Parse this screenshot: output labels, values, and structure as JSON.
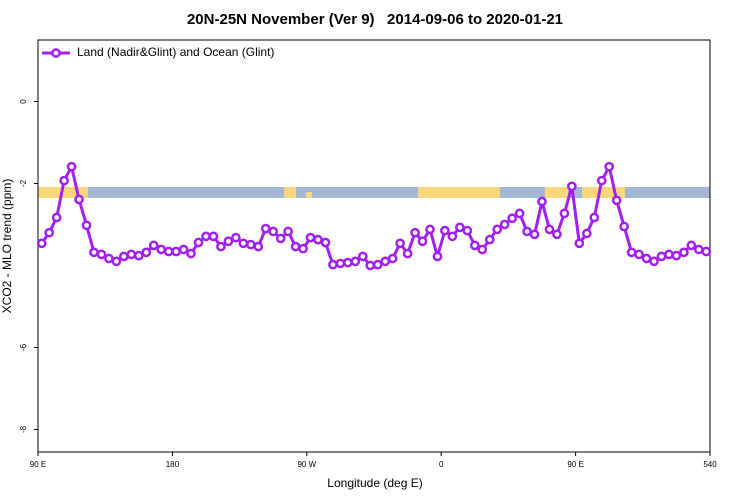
{
  "chart_data": {
    "type": "line",
    "title": "20N-25N November (Ver 9)   2014-09-06 to 2020-01-21",
    "x_label": "Longitude (deg E)",
    "y_label": "XCO2 - MLO trend (ppm)",
    "legend": "top-left",
    "x": [
      92.5,
      97.5,
      102.5,
      107.5,
      112.5,
      117.5,
      122.5,
      127.5,
      132.5,
      137.5,
      142.5,
      147.5,
      152.5,
      157.5,
      162.5,
      167.5,
      172.5,
      177.5,
      182.5,
      187.5,
      192.5,
      197.5,
      202.5,
      207.5,
      212.5,
      217.5,
      222.5,
      227.5,
      232.5,
      237.5,
      242.5,
      247.5,
      252.5,
      257.5,
      262.5,
      267.5,
      272.5,
      277.5,
      282.5,
      287.5,
      292.5,
      297.5,
      302.5,
      307.5,
      312.5,
      317.5,
      322.5,
      327.5,
      332.5,
      337.5,
      342.5,
      347.5,
      352.5,
      357.5,
      362.5,
      367.5,
      372.5,
      377.5,
      382.5,
      387.5,
      392.5,
      397.5,
      402.5,
      407.5,
      412.5,
      417.5,
      422.5,
      427.5,
      432.5,
      437.5,
      442.5,
      447.5,
      452.5,
      457.5,
      462.5,
      467.5,
      472.5,
      477.5,
      482.5,
      487.5,
      492.5,
      497.5,
      502.5,
      507.5,
      512.5,
      517.5,
      522.5,
      527.5,
      532.5,
      537.5
    ],
    "series": [
      {
        "name": "Land (Nadir&Glint) and Ocean (Glint)",
        "color": "#a020f0",
        "values": [
          -3.46,
          -3.2,
          -2.83,
          -1.93,
          -1.59,
          -2.39,
          -3.02,
          -3.68,
          -3.73,
          -3.83,
          -3.9,
          -3.78,
          -3.73,
          -3.76,
          -3.68,
          -3.51,
          -3.61,
          -3.66,
          -3.66,
          -3.61,
          -3.71,
          -3.44,
          -3.29,
          -3.29,
          -3.54,
          -3.41,
          -3.32,
          -3.46,
          -3.49,
          -3.54,
          -3.1,
          -3.17,
          -3.34,
          -3.17,
          -3.54,
          -3.59,
          -3.32,
          -3.37,
          -3.44,
          -3.98,
          -3.95,
          -3.93,
          -3.9,
          -3.78,
          -4.0,
          -3.98,
          -3.9,
          -3.83,
          -3.46,
          -3.71,
          -3.2,
          -3.41,
          -3.12,
          -3.78,
          -3.15,
          -3.29,
          -3.07,
          -3.15,
          -3.51,
          -3.61,
          -3.37,
          -3.12,
          -3.0,
          -2.85,
          -2.73,
          -3.17,
          -3.24,
          -2.44,
          -3.12,
          -3.24,
          -2.73,
          -2.07,
          -3.46,
          -3.22,
          -2.83,
          -1.93,
          -1.59,
          -2.41,
          -3.05,
          -3.68,
          -3.73,
          -3.83,
          -3.9,
          -3.78,
          -3.73,
          -3.76,
          -3.68,
          -3.51,
          -3.61,
          -3.66
        ]
      }
    ],
    "xlim": [
      90,
      540
    ],
    "xticks": [
      {
        "value": 90,
        "label": "90 E"
      },
      180,
      {
        "value": 270,
        "label": "90 W"
      },
      {
        "value": 360,
        "label": "0"
      },
      {
        "value": 450,
        "label": "90 E"
      },
      540
    ],
    "ylim": [
      -8.55,
      1.5
    ],
    "yticks": [
      0,
      -2,
      -6,
      -8
    ]
  }
}
